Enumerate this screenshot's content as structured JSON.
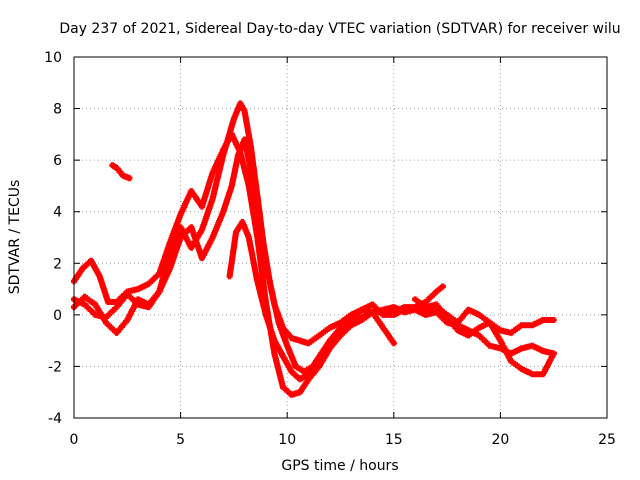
{
  "chart_data": {
    "type": "scatter",
    "title": "Day 237 of 2021, Sidereal Day-to-day VTEC variation (SDTVAR) for receiver wilu",
    "xlabel": "GPS time / hours",
    "ylabel": "SDTVAR / TECUs",
    "xlim": [
      0,
      25
    ],
    "ylim": [
      -4,
      10
    ],
    "x_ticks": [
      0,
      5,
      10,
      15,
      20,
      25
    ],
    "y_ticks": [
      -4,
      -2,
      0,
      2,
      4,
      6,
      8,
      10
    ],
    "grid": true,
    "marker": "+",
    "color": "#ff0000",
    "series": [
      {
        "name": "trace-1",
        "points": [
          [
            0.0,
            0.6
          ],
          [
            0.5,
            0.4
          ],
          [
            1.0,
            0.0
          ],
          [
            1.5,
            -0.1
          ],
          [
            2.0,
            0.3
          ],
          [
            2.5,
            0.8
          ],
          [
            3.0,
            0.4
          ],
          [
            3.5,
            0.3
          ],
          [
            4.0,
            0.9
          ],
          [
            4.5,
            2.4
          ],
          [
            5.0,
            3.4
          ],
          [
            5.5,
            2.6
          ],
          [
            6.0,
            3.3
          ],
          [
            6.5,
            4.5
          ],
          [
            7.0,
            6.2
          ],
          [
            7.5,
            7.6
          ],
          [
            7.8,
            8.2
          ],
          [
            8.0,
            7.9
          ],
          [
            8.3,
            6.5
          ],
          [
            8.7,
            4.0
          ],
          [
            9.0,
            2.0
          ],
          [
            9.4,
            0.4
          ],
          [
            9.8,
            -0.5
          ],
          [
            10.2,
            -0.9
          ],
          [
            10.6,
            -1.0
          ],
          [
            11.0,
            -1.1
          ],
          [
            11.5,
            -0.8
          ],
          [
            12.0,
            -0.5
          ],
          [
            12.5,
            -0.3
          ],
          [
            13.0,
            0.0
          ],
          [
            13.5,
            0.2
          ],
          [
            14.0,
            0.1
          ],
          [
            14.5,
            0.1
          ],
          [
            15.0,
            0.1
          ],
          [
            15.5,
            0.3
          ],
          [
            16.0,
            0.3
          ],
          [
            16.5,
            0.5
          ],
          [
            17.0,
            0.9
          ],
          [
            17.3,
            1.1
          ]
        ]
      },
      {
        "name": "trace-2",
        "points": [
          [
            0.0,
            1.3
          ],
          [
            0.4,
            1.8
          ],
          [
            0.8,
            2.1
          ],
          [
            1.2,
            1.5
          ],
          [
            1.6,
            0.5
          ],
          [
            2.0,
            0.5
          ],
          [
            2.5,
            0.9
          ],
          [
            3.0,
            1.0
          ],
          [
            3.5,
            1.2
          ],
          [
            4.0,
            1.6
          ],
          [
            4.5,
            2.8
          ],
          [
            5.0,
            3.9
          ],
          [
            5.5,
            4.8
          ],
          [
            6.0,
            4.2
          ],
          [
            6.5,
            5.5
          ],
          [
            7.0,
            6.4
          ],
          [
            7.4,
            7.0
          ],
          [
            7.8,
            6.3
          ],
          [
            8.2,
            5.0
          ],
          [
            8.6,
            3.0
          ],
          [
            9.0,
            0.5
          ],
          [
            9.4,
            -1.5
          ],
          [
            9.8,
            -2.8
          ],
          [
            10.2,
            -3.1
          ],
          [
            10.6,
            -3.0
          ],
          [
            11.0,
            -2.5
          ],
          [
            11.5,
            -2.0
          ],
          [
            12.0,
            -1.3
          ],
          [
            12.5,
            -0.8
          ],
          [
            13.0,
            -0.4
          ],
          [
            13.5,
            -0.1
          ],
          [
            14.0,
            0.1
          ],
          [
            14.5,
            -0.5
          ],
          [
            15.0,
            -1.1
          ]
        ]
      },
      {
        "name": "trace-3",
        "points": [
          [
            0.0,
            0.3
          ],
          [
            0.5,
            0.7
          ],
          [
            1.0,
            0.4
          ],
          [
            1.5,
            -0.3
          ],
          [
            2.0,
            -0.7
          ],
          [
            2.5,
            -0.2
          ],
          [
            3.0,
            0.6
          ],
          [
            3.5,
            0.4
          ],
          [
            4.0,
            0.9
          ],
          [
            4.5,
            1.8
          ],
          [
            5.0,
            3.0
          ],
          [
            5.5,
            3.4
          ],
          [
            6.0,
            2.2
          ],
          [
            6.5,
            3.0
          ],
          [
            7.0,
            4.0
          ],
          [
            7.4,
            5.0
          ],
          [
            7.7,
            6.2
          ],
          [
            8.0,
            6.8
          ],
          [
            8.4,
            5.2
          ],
          [
            8.8,
            3.2
          ],
          [
            9.2,
            1.2
          ],
          [
            9.6,
            -0.3
          ],
          [
            10.0,
            -1.2
          ],
          [
            10.4,
            -2.0
          ],
          [
            10.8,
            -2.2
          ],
          [
            11.2,
            -2.0
          ],
          [
            11.6,
            -1.5
          ],
          [
            12.0,
            -1.0
          ],
          [
            12.5,
            -0.5
          ],
          [
            13.0,
            -0.2
          ],
          [
            13.5,
            0.2
          ],
          [
            14.0,
            0.4
          ],
          [
            14.5,
            0.0
          ],
          [
            15.0,
            0.0
          ],
          [
            15.5,
            0.2
          ],
          [
            16.0,
            0.3
          ],
          [
            16.5,
            0.1
          ],
          [
            17.0,
            0.3
          ],
          [
            17.5,
            0.0
          ],
          [
            18.0,
            -0.3
          ],
          [
            18.5,
            0.2
          ],
          [
            19.0,
            0.0
          ],
          [
            19.5,
            -0.3
          ],
          [
            20.0,
            -1.0
          ],
          [
            20.5,
            -1.8
          ],
          [
            21.0,
            -2.1
          ],
          [
            21.5,
            -2.3
          ],
          [
            22.0,
            -2.3
          ],
          [
            22.5,
            -1.5
          ]
        ]
      },
      {
        "name": "trace-4",
        "points": [
          [
            7.3,
            1.5
          ],
          [
            7.6,
            3.2
          ],
          [
            7.9,
            3.6
          ],
          [
            8.2,
            3.0
          ],
          [
            8.6,
            1.3
          ],
          [
            9.0,
            0.0
          ],
          [
            9.4,
            -1.0
          ],
          [
            9.8,
            -1.6
          ],
          [
            10.2,
            -2.2
          ],
          [
            10.6,
            -2.5
          ],
          [
            11.0,
            -2.3
          ],
          [
            11.5,
            -1.8
          ],
          [
            12.0,
            -1.2
          ],
          [
            12.5,
            -0.7
          ],
          [
            13.0,
            -0.4
          ],
          [
            13.5,
            -0.2
          ],
          [
            14.0,
            0.1
          ],
          [
            14.5,
            0.2
          ],
          [
            15.0,
            0.3
          ],
          [
            15.5,
            0.1
          ],
          [
            16.0,
            0.2
          ],
          [
            16.5,
            0.0
          ],
          [
            17.0,
            0.1
          ],
          [
            17.5,
            -0.3
          ],
          [
            18.0,
            -0.4
          ],
          [
            18.5,
            -0.6
          ],
          [
            19.0,
            -0.8
          ],
          [
            19.5,
            -1.2
          ],
          [
            20.0,
            -1.3
          ],
          [
            20.5,
            -1.5
          ],
          [
            21.0,
            -1.3
          ],
          [
            21.5,
            -1.2
          ],
          [
            22.0,
            -1.4
          ],
          [
            22.5,
            -1.5
          ]
        ]
      },
      {
        "name": "trace-5",
        "points": [
          [
            16.0,
            0.6
          ],
          [
            16.5,
            0.3
          ],
          [
            17.0,
            0.4
          ],
          [
            17.5,
            -0.1
          ],
          [
            18.0,
            -0.6
          ],
          [
            18.5,
            -0.8
          ],
          [
            19.0,
            -0.5
          ],
          [
            19.5,
            -0.3
          ],
          [
            20.0,
            -0.6
          ],
          [
            20.5,
            -0.7
          ],
          [
            21.0,
            -0.4
          ],
          [
            21.5,
            -0.4
          ],
          [
            22.0,
            -0.2
          ],
          [
            22.5,
            -0.2
          ]
        ]
      },
      {
        "name": "trace-6",
        "points": [
          [
            1.8,
            5.8
          ],
          [
            2.0,
            5.7
          ],
          [
            2.3,
            5.4
          ],
          [
            2.6,
            5.3
          ]
        ]
      }
    ]
  }
}
